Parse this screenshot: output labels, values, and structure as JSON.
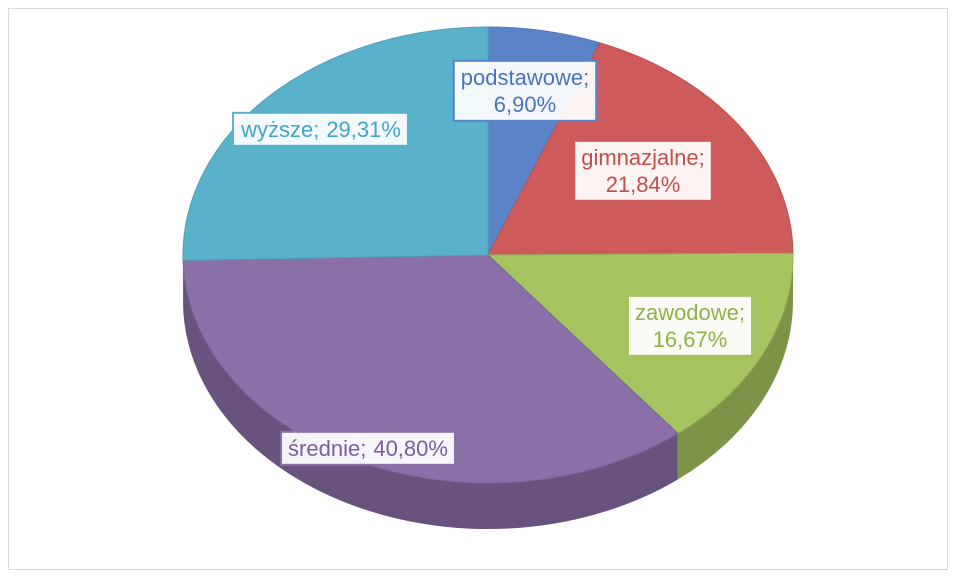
{
  "chart_data": {
    "type": "pie3d",
    "categories": [
      "podstawowe",
      "gimnazjalne",
      "zawodowe",
      "średnie",
      "wyższe"
    ],
    "values": [
      6.9,
      21.84,
      16.67,
      40.8,
      29.31
    ],
    "value_labels": [
      "6,90%",
      "21,84%",
      "16,67%",
      "40,80%",
      "29,31%"
    ],
    "label_separator": ";",
    "colors": [
      "#5b83c7",
      "#cd5b5b",
      "#a5c460",
      "#8a6fa8",
      "#5ab1cb"
    ],
    "label_colors": [
      "#4a74bb",
      "#c0504d",
      "#8fb148",
      "#7a5f9e",
      "#3fa7c4"
    ]
  }
}
